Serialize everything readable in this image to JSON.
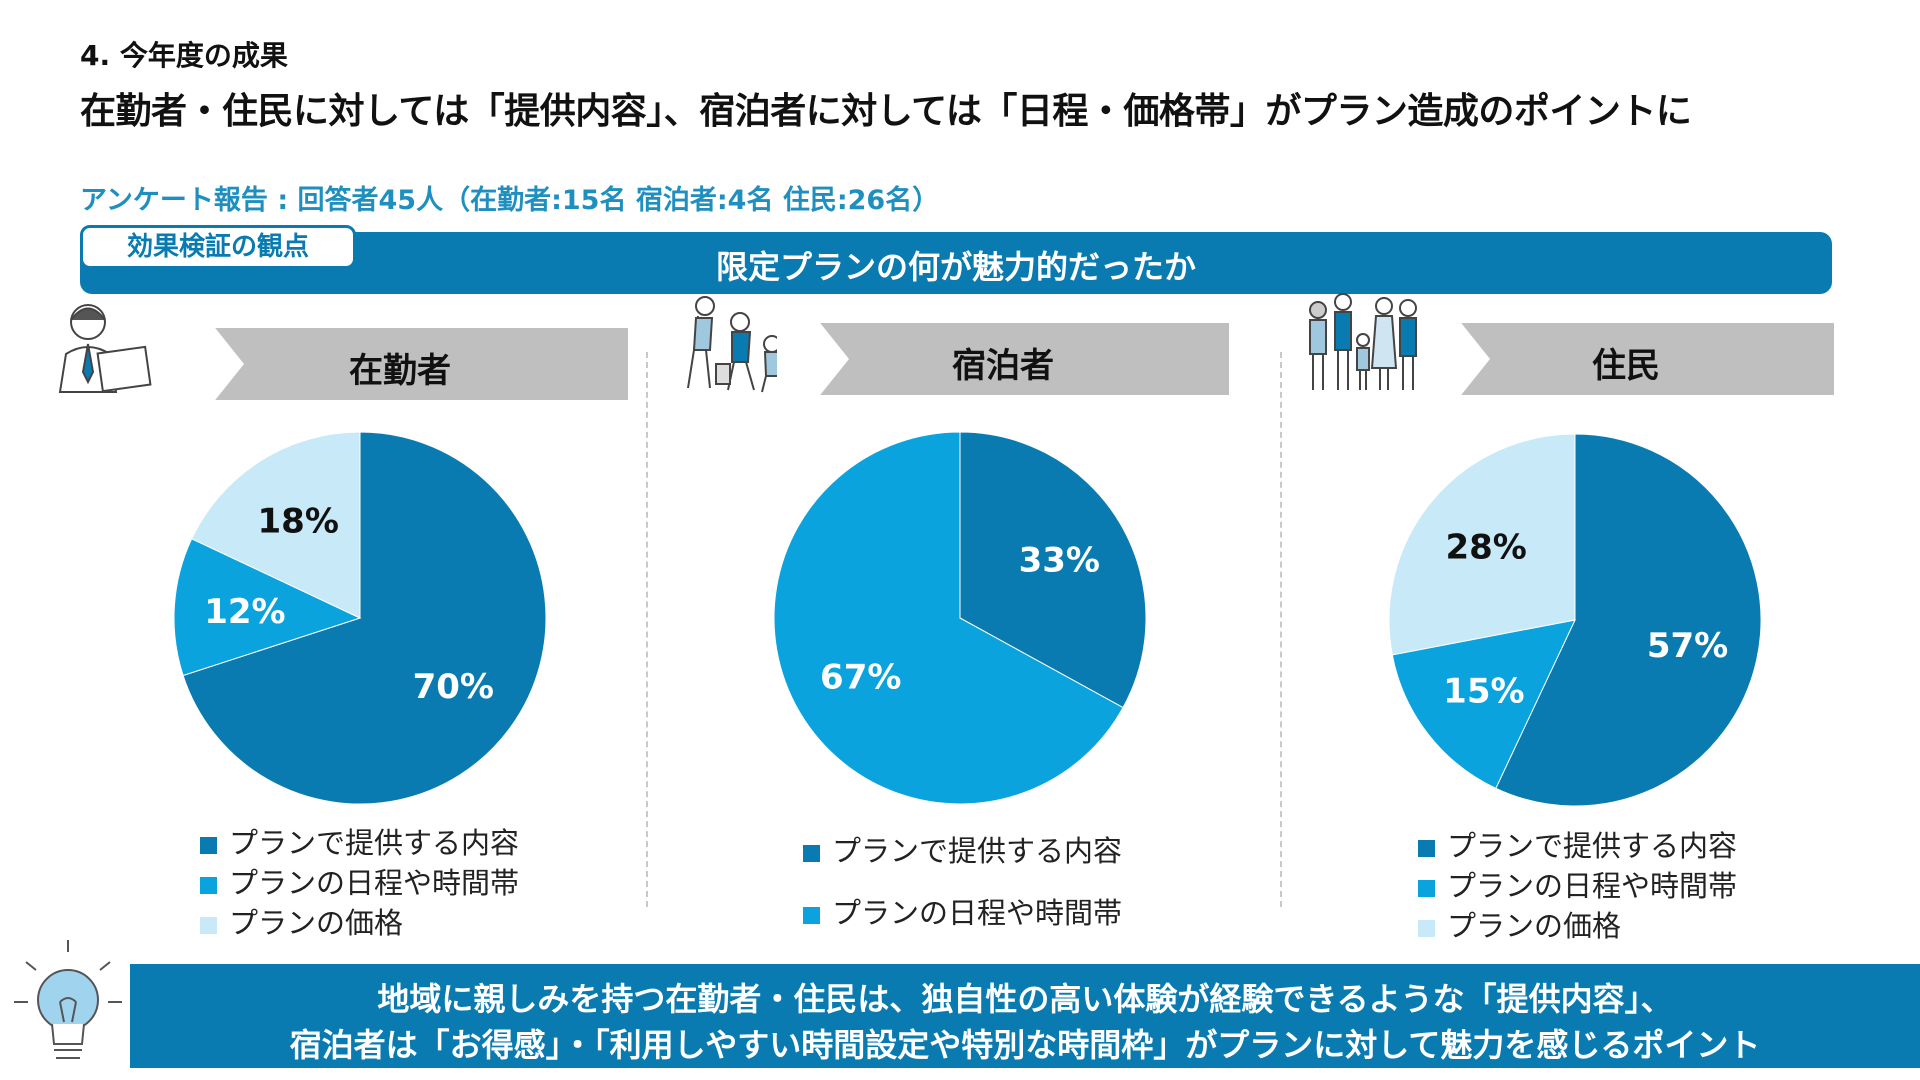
{
  "section_label": "4. 今年度の成果",
  "headline": "在勤者・住民に対しては「提供内容」、宿泊者に対しては「日程・価格帯」がプラン造成のポイントに",
  "survey_note": "アンケート報告 : 回答者45人（在勤者:15名 宿泊者:4名 住民:26名）",
  "viewpoint_tag": "効果検証の観点",
  "viewpoint_title": "限定プランの何が魅力的だったか",
  "colors": {
    "content": "#0a7bb0",
    "schedule": "#0aa3dd",
    "price": "#c8e9f8",
    "bar": "#0a7bb0",
    "header_gray": "#bfbfbf"
  },
  "chart_data": [
    {
      "type": "pie",
      "title": "在勤者",
      "slices": [
        {
          "label": "プランで提供する内容",
          "value": 70,
          "display": "70%",
          "color": "#0a7bb0"
        },
        {
          "label": "プランの日程や時間帯",
          "value": 12,
          "display": "12%",
          "color": "#0aa3dd"
        },
        {
          "label": "プランの価格",
          "value": 18,
          "display": "18%",
          "color": "#c8e9f8"
        }
      ]
    },
    {
      "type": "pie",
      "title": "宿泊者",
      "slices": [
        {
          "label": "プランで提供する内容",
          "value": 33,
          "display": "33%",
          "color": "#0a7bb0"
        },
        {
          "label": "プランの日程や時間帯",
          "value": 67,
          "display": "67%",
          "color": "#0aa3dd"
        }
      ]
    },
    {
      "type": "pie",
      "title": "住民",
      "slices": [
        {
          "label": "プランで提供する内容",
          "value": 57,
          "display": "57%",
          "color": "#0a7bb0"
        },
        {
          "label": "プランの日程や時間帯",
          "value": 15,
          "display": "15%",
          "color": "#0aa3dd"
        },
        {
          "label": "プランの価格",
          "value": 28,
          "display": "28%",
          "color": "#c8e9f8"
        }
      ]
    }
  ],
  "conclusion": {
    "line1": "地域に親しみを持つ在勤者・住民は、独自性の高い体験が経験できるような「提供内容」、",
    "line2": "宿泊者は「お得感」・「利用しやすい時間設定や特別な時間枠」がプランに対して魅力を感じるポイント"
  },
  "icons": [
    "office-worker-icon",
    "travelers-icon",
    "family-icon",
    "lightbulb-icon"
  ]
}
